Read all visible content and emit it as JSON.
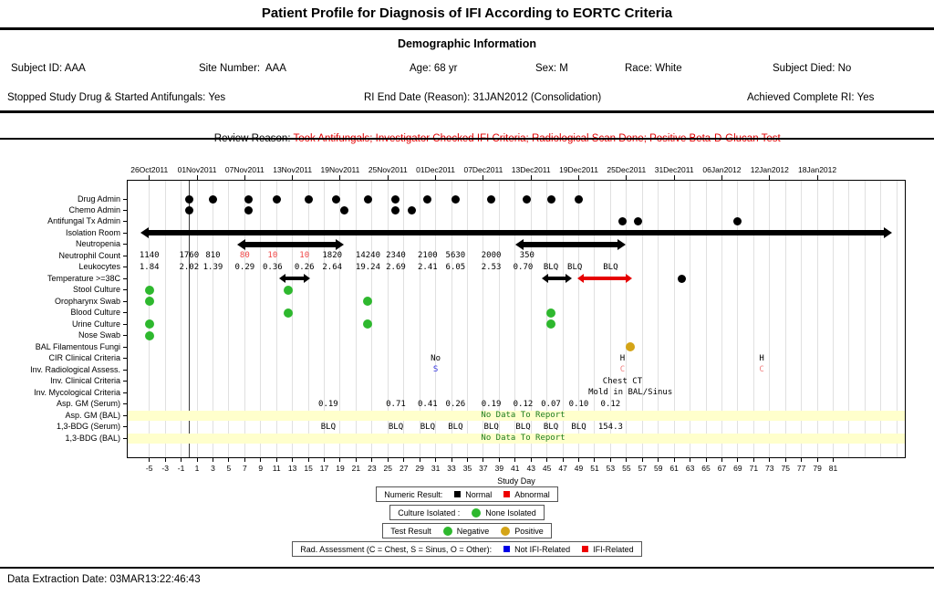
{
  "title": "Patient Profile for Diagnosis of IFI According to EORTC Criteria",
  "demographics": {
    "section_title": "Demographic Information",
    "row1": [
      {
        "text": "Subject ID: AAA"
      },
      {
        "text": "Site Number:  AAA"
      },
      {
        "text": "Age: 68 yr"
      },
      {
        "text": "Sex: M"
      },
      {
        "text": "Race: White"
      },
      {
        "text": "Subject Died: No"
      }
    ],
    "row2": [
      {
        "text": "Stopped Study Drug & Started Antifungals: Yes"
      },
      {
        "text": "RI End Date (Reason): 31JAN2012 (Consolidation)"
      },
      {
        "text": "Achieved Complete RI: Yes"
      }
    ]
  },
  "review": {
    "label": "Review Reason: ",
    "value": "Took Antifungals; Investigator Checked IFI Criteria; Radiological Scan Done; Positive Beta-D-Glucan Test",
    "value_color": "#e00000"
  },
  "footer": {
    "text": "Data Extraction Date: 03MAR13:22:46:43"
  },
  "chart_data": {
    "type": "timeline",
    "x_axis": {
      "label": "Study Day",
      "tick_min": -5,
      "tick_max": 81,
      "tick_step": 2,
      "grid_max": 89,
      "domain_min": -7.72,
      "domain_max": 90
    },
    "date_axis": {
      "days": [
        -5,
        1,
        7,
        13,
        19,
        25,
        31,
        37,
        43,
        49,
        55,
        61,
        67,
        73,
        79
      ],
      "labels": [
        "26Oct2011",
        "01Nov2011",
        "07Nov2011",
        "13Nov2011",
        "19Nov2011",
        "25Nov2011",
        "01Dec2011",
        "07Dec2011",
        "13Dec2011",
        "19Dec2011",
        "25Dec2011",
        "31Dec2011",
        "06Jan2012",
        "12Jan2012",
        "18Jan2012"
      ]
    },
    "reference_line_day": 0,
    "colors": {
      "black": "#000000",
      "red": "#e60000",
      "red_text": "#f04545",
      "salmon": "#f08080",
      "blue": "#3030e0",
      "legend_blue": "#0000e6",
      "legend_red": "#ee0000",
      "green": "#2eb82e",
      "gold": "#d4a417",
      "band_bg": "#ffffcc",
      "band_text": "#1e7d1e",
      "grid": "#e0e0e0"
    },
    "band_text_center_day": 42,
    "rows": [
      {
        "label": "Drug Admin",
        "items": [
          {
            "type": "dots",
            "color": "black",
            "days": [
              0,
              3,
              7.5,
              11,
              15,
              18.5,
              22.5,
              26,
              30,
              33.5,
              38,
              42.5,
              45.5,
              49
            ]
          }
        ]
      },
      {
        "label": "Chemo Admin",
        "items": [
          {
            "type": "dots",
            "color": "black",
            "days": [
              0,
              7.5,
              19.5,
              26,
              28
            ]
          }
        ]
      },
      {
        "label": "Antifungal Tx Admin",
        "items": [
          {
            "type": "dots",
            "color": "black",
            "days": [
              54.5,
              56.5,
              69
            ]
          }
        ]
      },
      {
        "label": "Isolation Room",
        "items": [
          {
            "type": "bar",
            "start": -5.2,
            "end": 87.5,
            "color": "black",
            "size": "thick"
          }
        ]
      },
      {
        "label": "Neutropenia",
        "items": [
          {
            "type": "bar",
            "start": 7,
            "end": 18.5,
            "color": "black",
            "size": "thick"
          },
          {
            "type": "bar",
            "start": 42,
            "end": 54,
            "color": "black",
            "size": "thick"
          }
        ]
      },
      {
        "label": "Neutrophil Count",
        "items": [
          {
            "type": "values",
            "points": [
              {
                "day": -5,
                "v": "1140"
              },
              {
                "day": 0,
                "v": "1760"
              },
              {
                "day": 3,
                "v": "810"
              },
              {
                "day": 7,
                "v": "80",
                "c": "red_text"
              },
              {
                "day": 10.5,
                "v": "10",
                "c": "red_text"
              },
              {
                "day": 14.5,
                "v": "10",
                "c": "red_text"
              },
              {
                "day": 18,
                "v": "1820"
              },
              {
                "day": 22.5,
                "v": "14240"
              },
              {
                "day": 26,
                "v": "2340"
              },
              {
                "day": 30,
                "v": "2100"
              },
              {
                "day": 33.5,
                "v": "5630"
              },
              {
                "day": 38,
                "v": "2000"
              },
              {
                "day": 42.5,
                "v": "350"
              }
            ]
          }
        ]
      },
      {
        "label": "Leukocytes",
        "items": [
          {
            "type": "values",
            "points": [
              {
                "day": -5,
                "v": "1.84"
              },
              {
                "day": 0,
                "v": "2.02"
              },
              {
                "day": 3,
                "v": "1.39"
              },
              {
                "day": 7,
                "v": "0.29"
              },
              {
                "day": 10.5,
                "v": "0.36"
              },
              {
                "day": 14.5,
                "v": "0.26"
              },
              {
                "day": 18,
                "v": "2.64"
              },
              {
                "day": 22.5,
                "v": "19.24"
              },
              {
                "day": 26,
                "v": "2.69"
              },
              {
                "day": 30,
                "v": "2.41"
              },
              {
                "day": 33.5,
                "v": "6.05"
              },
              {
                "day": 38,
                "v": "2.53"
              },
              {
                "day": 42,
                "v": "0.70"
              },
              {
                "day": 45.5,
                "v": "BLQ"
              },
              {
                "day": 48.5,
                "v": "BLQ"
              },
              {
                "day": 53,
                "v": "BLQ"
              }
            ]
          }
        ]
      },
      {
        "label": "Temperature >=38C",
        "items": [
          {
            "type": "bar",
            "start": 12,
            "end": 14.5,
            "color": "black",
            "size": "thin"
          },
          {
            "type": "bar",
            "start": 45,
            "end": 47.5,
            "color": "black",
            "size": "thin"
          },
          {
            "type": "bar",
            "start": 49.5,
            "end": 55,
            "color": "red",
            "size": "thin"
          },
          {
            "type": "dots",
            "color": "black",
            "days": [
              62
            ]
          }
        ]
      },
      {
        "label": "Stool Culture",
        "items": [
          {
            "type": "dots",
            "color": "green",
            "days": [
              -5,
              12.5
            ]
          }
        ]
      },
      {
        "label": "Oropharynx Swab",
        "items": [
          {
            "type": "dots",
            "color": "green",
            "days": [
              -5,
              22.5
            ]
          }
        ]
      },
      {
        "label": "Blood Culture",
        "items": [
          {
            "type": "dots",
            "color": "green",
            "days": [
              12.5,
              45.5
            ]
          }
        ]
      },
      {
        "label": "Urine Culture",
        "items": [
          {
            "type": "dots",
            "color": "green",
            "days": [
              -5,
              22.5,
              45.5
            ]
          }
        ]
      },
      {
        "label": "Nose Swab",
        "items": [
          {
            "type": "dots",
            "color": "green",
            "days": [
              -5
            ]
          }
        ]
      },
      {
        "label": "BAL Filamentous Fungi",
        "items": [
          {
            "type": "dots",
            "color": "gold",
            "days": [
              55.5
            ]
          }
        ]
      },
      {
        "label": "CIR Clinical Criteria",
        "items": [
          {
            "type": "values",
            "points": [
              {
                "day": 31,
                "v": "No"
              },
              {
                "day": 54.5,
                "v": "H"
              },
              {
                "day": 72,
                "v": "H"
              }
            ]
          }
        ]
      },
      {
        "label": "Inv. Radiological Assess.",
        "items": [
          {
            "type": "values",
            "points": [
              {
                "day": 31,
                "v": "S",
                "c": "blue"
              },
              {
                "day": 54.5,
                "v": "C",
                "c": "salmon"
              },
              {
                "day": 72,
                "v": "C",
                "c": "salmon"
              }
            ]
          }
        ]
      },
      {
        "label": "Inv. Clinical Criteria",
        "items": [
          {
            "type": "values",
            "points": [
              {
                "day": 54.5,
                "v": "Chest CT"
              }
            ]
          }
        ]
      },
      {
        "label": "Inv. Mycological Criteria",
        "items": [
          {
            "type": "values",
            "points": [
              {
                "day": 55.5,
                "v": "Mold in BAL/Sinus"
              }
            ]
          }
        ]
      },
      {
        "label": "Asp. GM (Serum)",
        "items": [
          {
            "type": "values",
            "points": [
              {
                "day": 17.5,
                "v": "0.19"
              },
              {
                "day": 26,
                "v": "0.71"
              },
              {
                "day": 30,
                "v": "0.41"
              },
              {
                "day": 33.5,
                "v": "0.26"
              },
              {
                "day": 38,
                "v": "0.19"
              },
              {
                "day": 42,
                "v": "0.12"
              },
              {
                "day": 45.5,
                "v": "0.07"
              },
              {
                "day": 49,
                "v": "0.10"
              },
              {
                "day": 53,
                "v": "0.12"
              }
            ]
          }
        ]
      },
      {
        "label": "Asp. GM (BAL)",
        "items": [
          {
            "type": "band",
            "text": "No Data To Report"
          }
        ]
      },
      {
        "label": "1,3-BDG (Serum)",
        "items": [
          {
            "type": "values",
            "points": [
              {
                "day": 17.5,
                "v": "BLQ"
              },
              {
                "day": 26,
                "v": "BLQ"
              },
              {
                "day": 30,
                "v": "BLQ"
              },
              {
                "day": 33.5,
                "v": "BLQ"
              },
              {
                "day": 38,
                "v": "BLQ"
              },
              {
                "day": 42,
                "v": "BLQ"
              },
              {
                "day": 45.5,
                "v": "BLQ"
              },
              {
                "day": 49,
                "v": "BLQ"
              },
              {
                "day": 53,
                "v": "154.3"
              }
            ]
          }
        ]
      },
      {
        "label": "1,3-BDG (BAL)",
        "items": [
          {
            "type": "band",
            "text": "No Data To Report"
          }
        ]
      }
    ],
    "legends": [
      {
        "title": "Numeric Result:",
        "entries": [
          {
            "swatch": "square",
            "color": "black",
            "label": "Normal"
          },
          {
            "swatch": "square",
            "color": "legend_red",
            "label": "Abnormal"
          }
        ]
      },
      {
        "title": "Culture Isolated :",
        "entries": [
          {
            "swatch": "circle",
            "color": "green",
            "label": "None Isolated"
          }
        ]
      },
      {
        "title": "Test Result",
        "entries": [
          {
            "swatch": "circle",
            "color": "green",
            "label": "Negative"
          },
          {
            "swatch": "circle",
            "color": "gold",
            "label": "Positive"
          }
        ]
      },
      {
        "title": "Rad. Assessment (C = Chest, S = Sinus, O = Other):",
        "entries": [
          {
            "swatch": "square",
            "color": "legend_blue",
            "label": "Not IFI-Related"
          },
          {
            "swatch": "square",
            "color": "legend_red",
            "label": "IFI-Related"
          }
        ]
      }
    ]
  }
}
